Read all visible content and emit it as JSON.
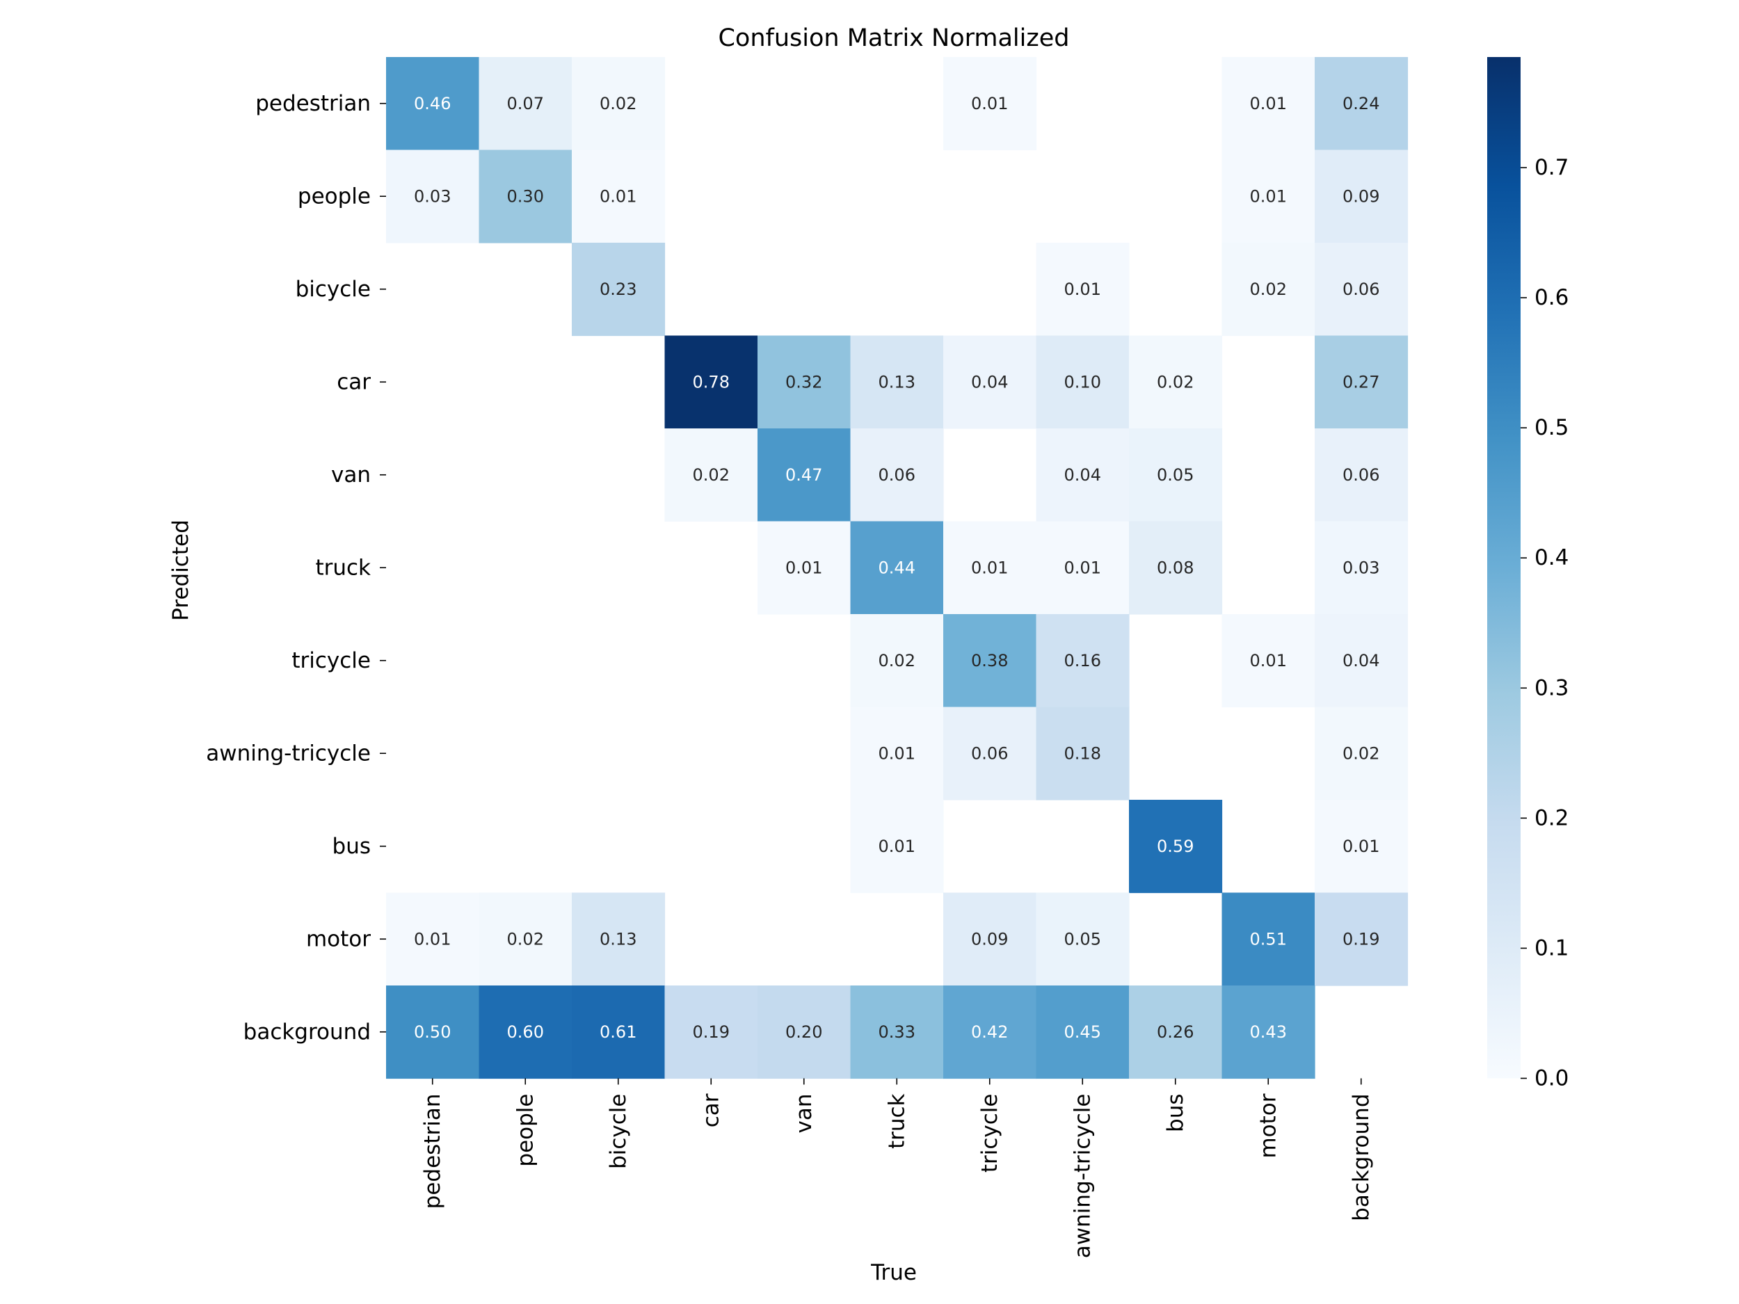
{
  "chart_data": {
    "type": "heatmap",
    "title": "Confusion Matrix Normalized",
    "xlabel": "True",
    "ylabel": "Predicted",
    "x_categories": [
      "pedestrian",
      "people",
      "bicycle",
      "car",
      "van",
      "truck",
      "tricycle",
      "awning-tricycle",
      "bus",
      "motor",
      "background"
    ],
    "y_categories": [
      "pedestrian",
      "people",
      "bicycle",
      "car",
      "van",
      "truck",
      "tricycle",
      "awning-tricycle",
      "bus",
      "motor",
      "background"
    ],
    "values": [
      [
        0.46,
        0.07,
        0.02,
        null,
        null,
        null,
        0.01,
        null,
        null,
        0.01,
        0.24
      ],
      [
        0.03,
        0.3,
        0.01,
        null,
        null,
        null,
        null,
        null,
        null,
        0.01,
        0.09
      ],
      [
        null,
        null,
        0.23,
        null,
        null,
        null,
        null,
        0.01,
        null,
        0.02,
        0.06
      ],
      [
        null,
        null,
        null,
        0.78,
        0.32,
        0.13,
        0.04,
        0.1,
        0.02,
        null,
        0.27
      ],
      [
        null,
        null,
        null,
        0.02,
        0.47,
        0.06,
        null,
        0.04,
        0.05,
        null,
        0.06
      ],
      [
        null,
        null,
        null,
        null,
        0.01,
        0.44,
        0.01,
        0.01,
        0.08,
        null,
        0.03
      ],
      [
        null,
        null,
        null,
        null,
        null,
        0.02,
        0.38,
        0.16,
        null,
        0.01,
        0.04
      ],
      [
        null,
        null,
        null,
        null,
        null,
        0.01,
        0.06,
        0.18,
        null,
        null,
        0.02
      ],
      [
        null,
        null,
        null,
        null,
        null,
        0.01,
        null,
        null,
        0.59,
        null,
        0.01
      ],
      [
        0.01,
        0.02,
        0.13,
        null,
        null,
        null,
        0.09,
        0.05,
        null,
        0.51,
        0.19
      ],
      [
        0.5,
        0.6,
        0.61,
        0.19,
        0.2,
        0.33,
        0.42,
        0.45,
        0.26,
        0.43,
        null
      ]
    ],
    "colormap": "Blues",
    "color_range": [
      0.0,
      0.785
    ],
    "colorbar_ticks": [
      "0.0",
      "0.1",
      "0.2",
      "0.3",
      "0.4",
      "0.5",
      "0.6",
      "0.7"
    ],
    "colorbar_tick_values": [
      0.0,
      0.1,
      0.2,
      0.3,
      0.4,
      0.5,
      0.6,
      0.7
    ],
    "colors": {
      "blues": [
        "#f7fbff",
        "#deebf7",
        "#c6dbef",
        "#9ecae1",
        "#6baed6",
        "#4292c6",
        "#2171b5",
        "#08519c",
        "#08306b"
      ],
      "text_dark": "#262626",
      "text_light": "#ffffff"
    }
  }
}
